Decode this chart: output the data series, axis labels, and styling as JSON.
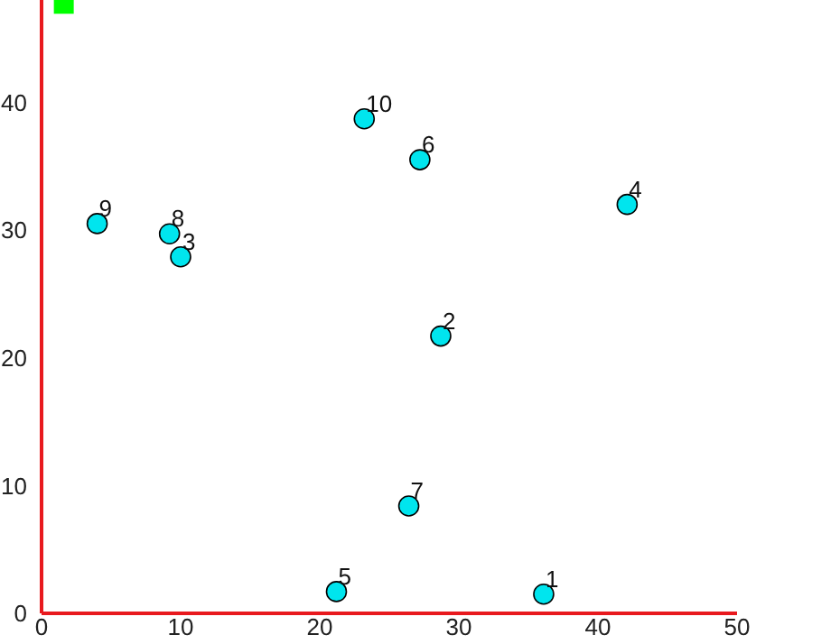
{
  "chart_data": {
    "type": "scatter",
    "xlim": [
      0,
      50
    ],
    "ylim": [
      0,
      48
    ],
    "xticks": [
      0,
      10,
      20,
      30,
      40,
      50
    ],
    "yticks": [
      0,
      10,
      20,
      30,
      40
    ],
    "grid": false,
    "legend": false,
    "series": [
      {
        "color": "#00e5ee",
        "marker": "circle",
        "x": [
          36.1,
          28.7,
          10.0,
          42.1,
          21.2,
          27.2,
          26.4,
          9.2,
          4.0,
          23.2
        ],
        "values": [
          1.5,
          21.7,
          27.9,
          32.0,
          1.7,
          35.5,
          8.4,
          29.7,
          30.5,
          38.7
        ]
      },
      {
        "color": "#00ff00",
        "marker": "square",
        "x": [
          1.6
        ],
        "values": [
          47.7
        ]
      }
    ],
    "annotations": [
      {
        "text": "1",
        "x": 36.1,
        "y": 1.5
      },
      {
        "text": "2",
        "x": 28.7,
        "y": 21.7
      },
      {
        "text": "3",
        "x": 10.0,
        "y": 27.9
      },
      {
        "text": "4",
        "x": 42.1,
        "y": 32.0
      },
      {
        "text": "5",
        "x": 21.2,
        "y": 1.7
      },
      {
        "text": "6",
        "x": 27.2,
        "y": 35.5
      },
      {
        "text": "7",
        "x": 26.4,
        "y": 8.4
      },
      {
        "text": "8",
        "x": 9.2,
        "y": 29.7
      },
      {
        "text": "9",
        "x": 4.0,
        "y": 30.5
      },
      {
        "text": "10",
        "x": 23.2,
        "y": 38.7
      }
    ]
  }
}
